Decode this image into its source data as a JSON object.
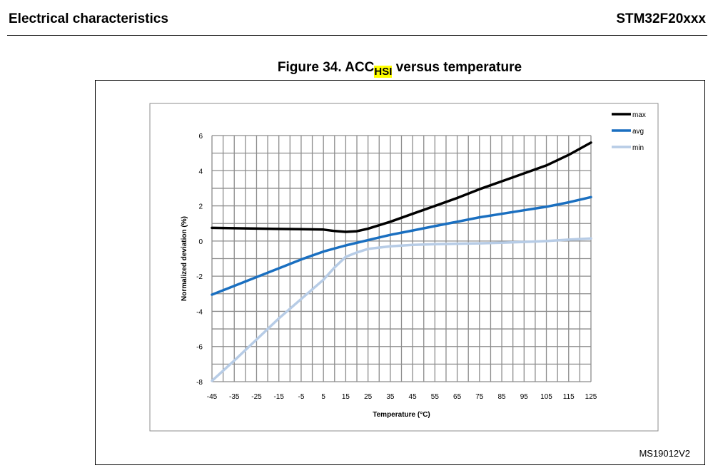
{
  "header": {
    "section": "Electrical characteristics",
    "part": "STM32F20xxx"
  },
  "figure": {
    "title_prefix": "Figure 34. ACC",
    "title_sub": "HSI",
    "title_suffix": " versus temperature",
    "code": "MS19012V2"
  },
  "chart_data": {
    "type": "line",
    "xlabel": "Temperature (°C)",
    "ylabel": "Normalized deviation (%)",
    "xlim": [
      -45,
      125
    ],
    "ylim": [
      -8,
      6
    ],
    "x_ticks": [
      -45,
      -35,
      -25,
      -15,
      -5,
      5,
      15,
      25,
      35,
      45,
      55,
      65,
      75,
      85,
      95,
      105,
      115,
      125
    ],
    "y_ticks": [
      -8,
      -6,
      -4,
      -2,
      0,
      2,
      4,
      6
    ],
    "grid": true,
    "legend_position": "top-right",
    "colors": {
      "max": "#000000",
      "avg": "#1a6fc0",
      "min": "#b7cce6"
    },
    "series": [
      {
        "name": "max",
        "x": [
          -45,
          -35,
          -25,
          -15,
          -5,
          5,
          10,
          15,
          20,
          25,
          35,
          45,
          55,
          65,
          75,
          85,
          95,
          105,
          115,
          125
        ],
        "y": [
          0.75,
          0.73,
          0.71,
          0.69,
          0.67,
          0.65,
          0.57,
          0.52,
          0.56,
          0.7,
          1.1,
          1.55,
          2.0,
          2.45,
          2.95,
          3.4,
          3.85,
          4.3,
          4.9,
          5.6
        ]
      },
      {
        "name": "avg",
        "x": [
          -45,
          -35,
          -25,
          -15,
          -5,
          5,
          15,
          25,
          35,
          45,
          55,
          65,
          75,
          85,
          95,
          105,
          115,
          125
        ],
        "y": [
          -3.05,
          -2.55,
          -2.05,
          -1.55,
          -1.05,
          -0.6,
          -0.25,
          0.05,
          0.35,
          0.6,
          0.85,
          1.1,
          1.35,
          1.55,
          1.75,
          1.95,
          2.2,
          2.5
        ]
      },
      {
        "name": "min",
        "x": [
          -45,
          -35,
          -25,
          -15,
          -5,
          5,
          10,
          15,
          20,
          25,
          35,
          45,
          55,
          65,
          75,
          85,
          95,
          105,
          115,
          125
        ],
        "y": [
          -7.95,
          -6.8,
          -5.6,
          -4.4,
          -3.3,
          -2.2,
          -1.5,
          -0.9,
          -0.65,
          -0.45,
          -0.3,
          -0.22,
          -0.18,
          -0.15,
          -0.13,
          -0.1,
          -0.05,
          0.0,
          0.08,
          0.15
        ]
      }
    ]
  }
}
